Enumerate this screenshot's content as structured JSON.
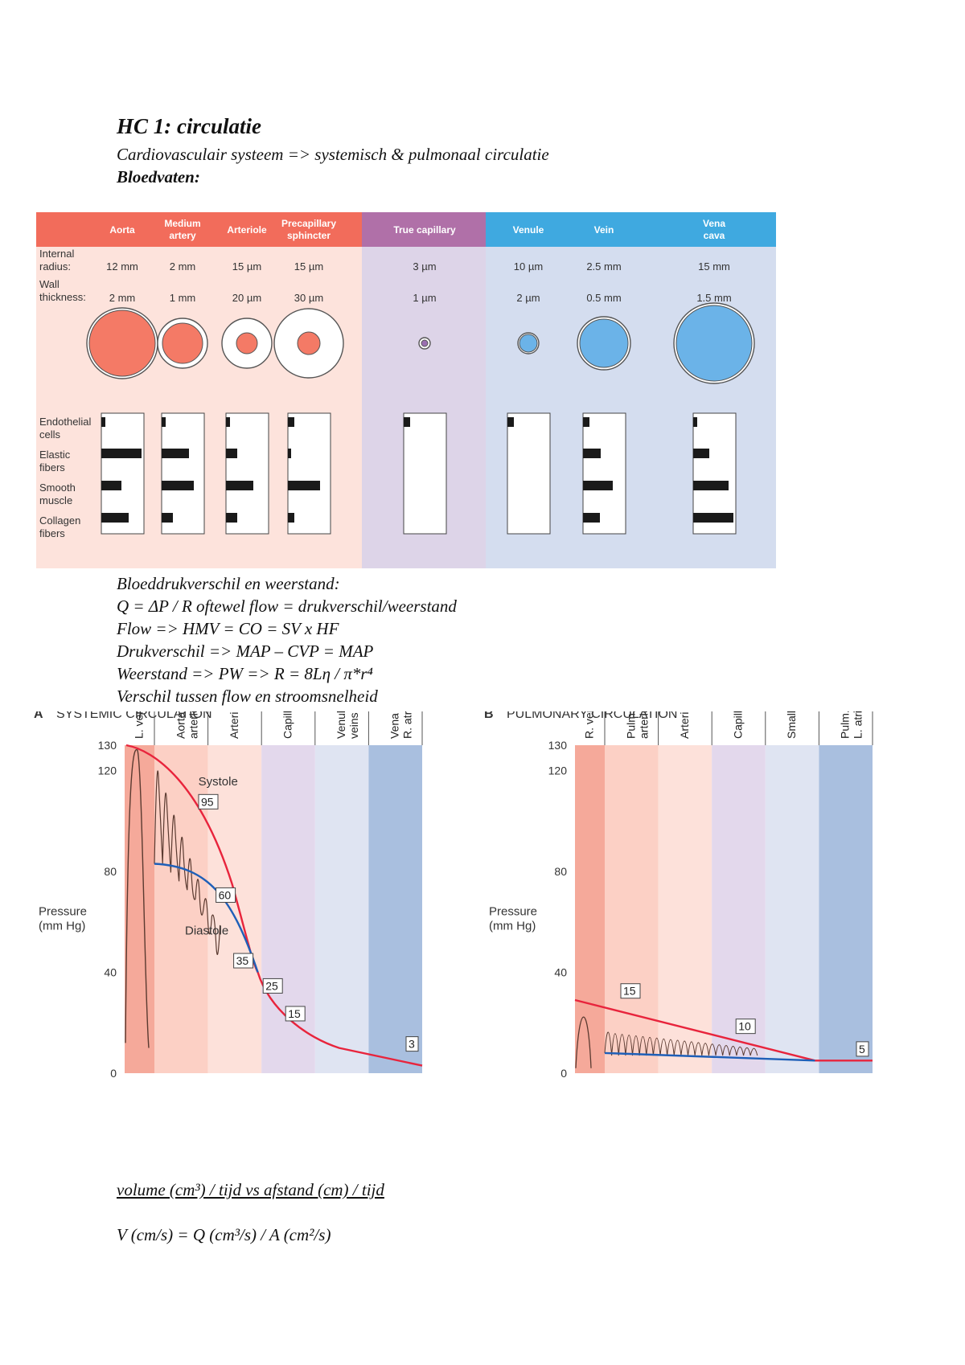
{
  "heading": {
    "title": "HC 1: circulatie",
    "subtitle": "Cardiovasculair systeem => systemisch & pulmonaal circulatie",
    "vessels_label": "Bloedvaten:"
  },
  "vessel_table": {
    "columns": [
      "Aorta",
      "Medium artery",
      "Arteriole",
      "Precapillary sphincter",
      "True capillary",
      "Venule",
      "Vein",
      "Vena cava"
    ],
    "row_labels": {
      "radius": [
        "Internal",
        "radius:"
      ],
      "wall": [
        "Wall",
        "thickness:"
      ],
      "endothelial": [
        "Endothelial",
        "cells"
      ],
      "elastic": [
        "Elastic",
        "fibers"
      ],
      "smooth": [
        "Smooth",
        "muscle"
      ],
      "collagen": [
        "Collagen",
        "fibers"
      ]
    },
    "internal_radius": [
      "12 mm",
      "2 mm",
      "15 µm",
      "15 µm",
      "3 µm",
      "10 µm",
      "2.5 mm",
      "15 mm"
    ],
    "wall_thickness": [
      "2 mm",
      "1 mm",
      "20 µm",
      "30 µm",
      "1 µm",
      "2 µm",
      "0.5 mm",
      "1.5 mm"
    ],
    "colors": {
      "artery": "#f26c5b",
      "capillary": "#b070a8",
      "vein": "#3fa9e0"
    }
  },
  "formulas": {
    "line1": "Bloeddrukverschil en weerstand:",
    "line2": "Q = ΔP / R  oftewel flow = drukverschil/weerstand",
    "line3": "Flow => HMV = CO = SV x HF",
    "line4": "Drukverschil => MAP – CVP = MAP",
    "line5": "Weerstand => PW => R = 8Lη / π*r⁴",
    "line6": "Verschil tussen flow en stroomsnelheid",
    "underlined": "volume (cm³) / tijd vs afstand (cm) / tijd",
    "velocity": "V (cm/s) = Q (cm³/s) / A (cm²/s)"
  },
  "chart_data": [
    {
      "type": "line",
      "panel_letter": "A",
      "title": "SYSTEMIC CIRCULATION",
      "ylabel": "Pressure\n(mm Hg)",
      "ylim": [
        0,
        130
      ],
      "yticks": [
        0,
        40,
        80,
        120,
        130
      ],
      "regions": [
        "L. ventricle",
        "Aorta, arteries",
        "Arterioles",
        "Capillaries",
        "Venules, veins",
        "Vena cava, R. atrium"
      ],
      "series": [
        {
          "name": "Systole",
          "values": [
            130,
            120,
            95,
            80,
            35,
            25,
            15,
            3
          ]
        },
        {
          "name": "Diastole",
          "values": [
            83,
            80,
            60,
            35
          ]
        }
      ],
      "annotations": [
        "95",
        "60",
        "35",
        "25",
        "15",
        "3"
      ]
    },
    {
      "type": "line",
      "panel_letter": "B",
      "title": "PULMONARY CIRCULATION",
      "ylabel": "Pressure\n(mm Hg)",
      "ylim": [
        0,
        130
      ],
      "yticks": [
        0,
        40,
        80,
        120,
        130
      ],
      "regions": [
        "R. ventricle",
        "Pulm. artery, arteries",
        "Arterioles",
        "Capillaries",
        "Small veins",
        "Pulm. veins, L. atrium"
      ],
      "annotations": [
        "15",
        "10",
        "5"
      ]
    }
  ]
}
